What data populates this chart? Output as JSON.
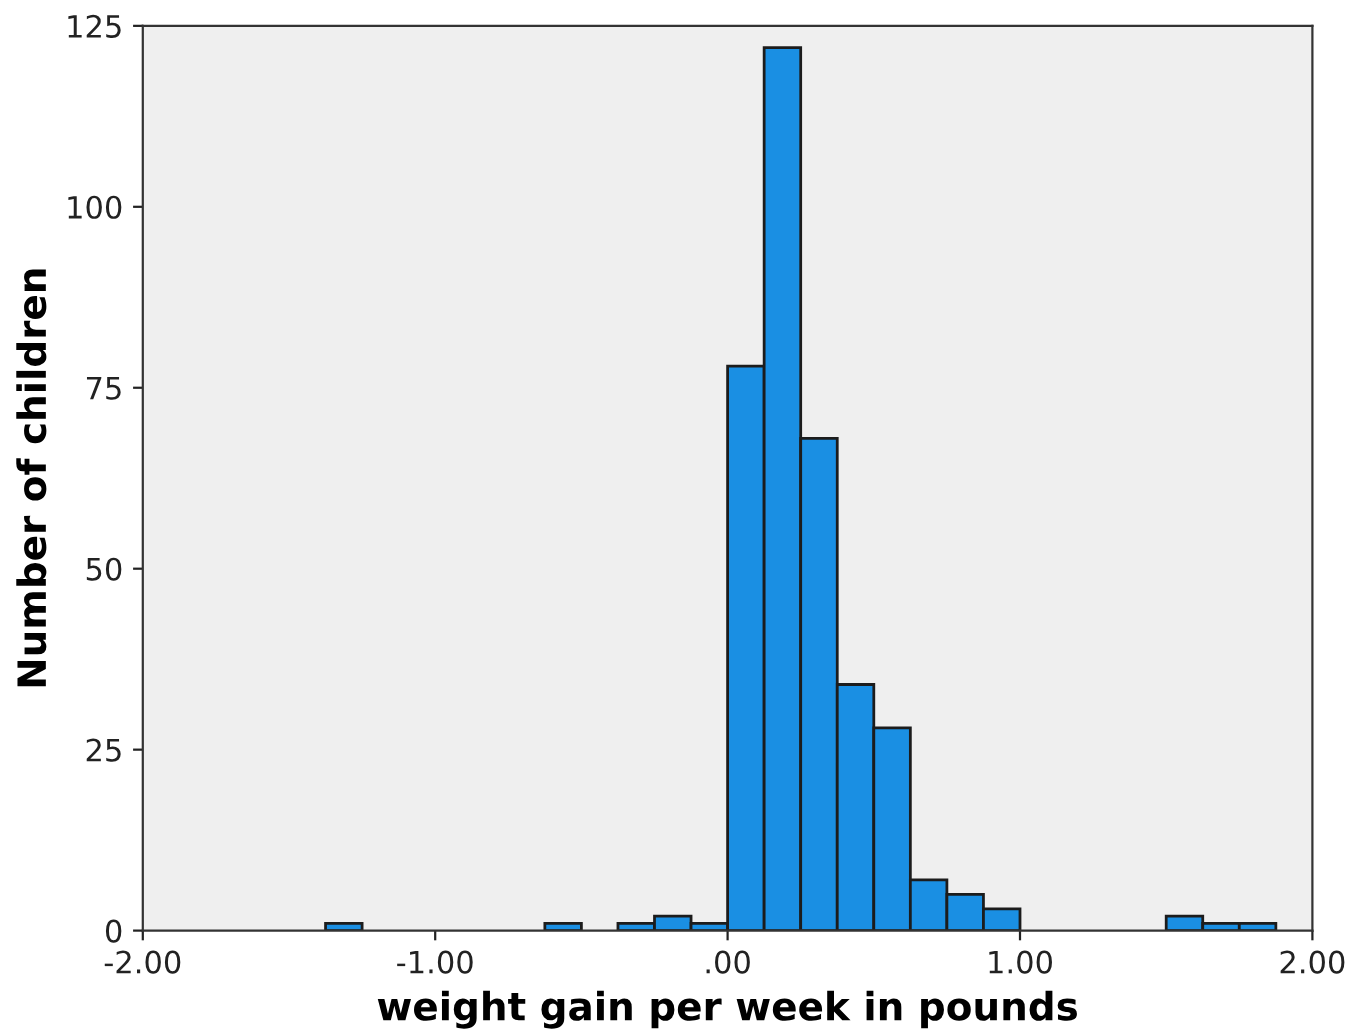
{
  "chart_data": {
    "type": "histogram",
    "xlabel": "weight gain per week in pounds",
    "ylabel": "Number of children",
    "bins": [
      -1.375,
      -1.25,
      -1.125,
      -1.0,
      -0.875,
      -0.75,
      -0.625,
      -0.5,
      -0.375,
      -0.25,
      -0.125,
      0.0,
      0.125,
      0.25,
      0.375,
      0.5,
      0.625,
      0.75,
      0.875,
      1.0,
      1.125,
      1.25,
      1.375,
      1.5,
      1.625,
      1.75,
      1.875
    ],
    "values": [
      1,
      0,
      0,
      0,
      0,
      0,
      1,
      0,
      1,
      2,
      1,
      78,
      122,
      68,
      34,
      28,
      7,
      5,
      3,
      0,
      0,
      0,
      0,
      2,
      1,
      1
    ],
    "color": "#1a8fe3",
    "xlim": [
      -2.0,
      2.0
    ],
    "xticks": [
      {
        "value": -2.0,
        "label": "-2.00"
      },
      {
        "value": -1.0,
        "label": "-1.00"
      },
      {
        "value": 0.0,
        "label": ".00"
      },
      {
        "value": 1.0,
        "label": "1.00"
      },
      {
        "value": 2.0,
        "label": "2.00"
      }
    ],
    "ylim": [
      0,
      125
    ],
    "yticks": [
      0,
      25,
      50,
      75,
      100,
      125
    ],
    "grid": false
  }
}
